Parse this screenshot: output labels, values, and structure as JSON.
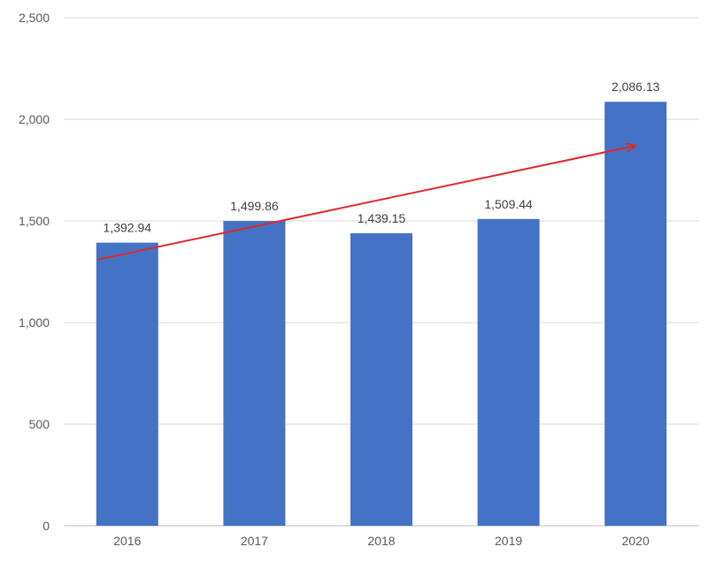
{
  "chart_data": {
    "type": "bar",
    "title": "",
    "xlabel": "",
    "ylabel": "",
    "categories": [
      "2016",
      "2017",
      "2018",
      "2019",
      "2020"
    ],
    "values": [
      1392.94,
      1499.86,
      1439.15,
      1509.44,
      2086.13
    ],
    "data_labels": [
      "1,392.94",
      "1,499.86",
      "1,439.15",
      "1,509.44",
      "2,086.13"
    ],
    "ylim": [
      0,
      2500
    ],
    "yticks": [
      0,
      500,
      1000,
      1500,
      2000,
      2500
    ],
    "ytick_labels": [
      "0",
      "500",
      "1,000",
      "1,500",
      "2,000",
      "2,500"
    ],
    "grid": true,
    "legend": "none",
    "annotations": [
      {
        "type": "arrow",
        "from": {
          "x": "2016",
          "y": 1310
        },
        "to": {
          "x": "2020",
          "y": 1870
        },
        "color": "#e0282c"
      }
    ]
  },
  "colors": {
    "bar": "#4472c4",
    "grid": "#d9d9d9",
    "axis": "#bfbfbf",
    "arrow": "#e0282c"
  }
}
